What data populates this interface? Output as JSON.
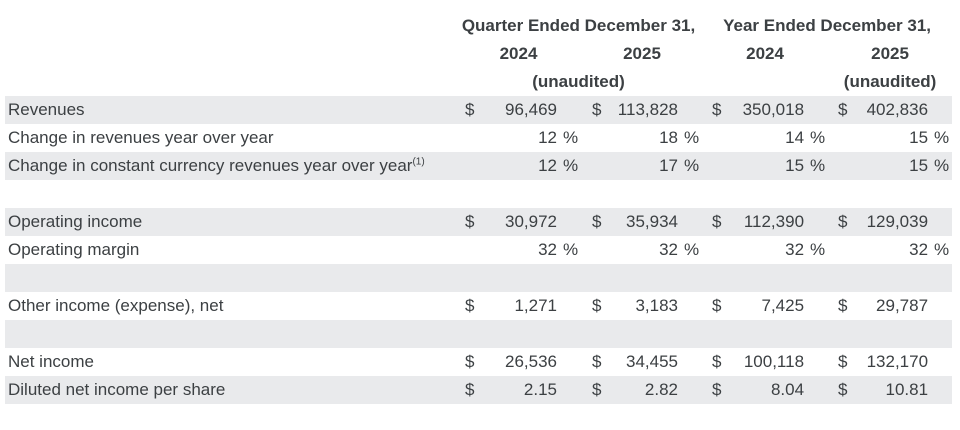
{
  "header": {
    "quarter_group": {
      "title": "Quarter Ended December 31,",
      "year_1": "2024",
      "year_2": "2025",
      "unaudited": "(unaudited)"
    },
    "year_group": {
      "title": "Year Ended December 31,",
      "year_1": "2024",
      "year_2": "2025",
      "unaudited": "(unaudited)"
    }
  },
  "symbols": {
    "dollar": "$",
    "percent": "%"
  },
  "colors": {
    "stripe": "#e9eaec",
    "text": "#3c4043",
    "background": "#ffffff"
  },
  "rows": [
    {
      "label": "Revenues",
      "unit": "dollar",
      "shaded": true,
      "values": [
        "96,469",
        "113,828",
        "350,018",
        "402,836"
      ]
    },
    {
      "label": "Change in revenues year over year",
      "unit": "percent",
      "shaded": false,
      "values": [
        "12",
        "18",
        "14",
        "15"
      ]
    },
    {
      "label": "Change in constant currency revenues year over year",
      "label_superscript": "(1)",
      "unit": "percent",
      "shaded": true,
      "values": [
        "12",
        "17",
        "15",
        "15"
      ]
    },
    {
      "spacer": true,
      "shaded": false
    },
    {
      "label": "Operating income",
      "unit": "dollar",
      "shaded": true,
      "values": [
        "30,972",
        "35,934",
        "112,390",
        "129,039"
      ]
    },
    {
      "label": "Operating margin",
      "unit": "percent",
      "shaded": false,
      "values": [
        "32",
        "32",
        "32",
        "32"
      ]
    },
    {
      "spacer": true,
      "shaded": true
    },
    {
      "label": "Other income (expense), net",
      "unit": "dollar",
      "shaded": false,
      "values": [
        "1,271",
        "3,183",
        "7,425",
        "29,787"
      ]
    },
    {
      "spacer": true,
      "shaded": true
    },
    {
      "label": "Net income",
      "unit": "dollar",
      "shaded": false,
      "values": [
        "26,536",
        "34,455",
        "100,118",
        "132,170"
      ]
    },
    {
      "label": "Diluted net income per share",
      "unit": "dollar",
      "shaded": true,
      "values": [
        "2.15",
        "2.82",
        "8.04",
        "10.81"
      ]
    }
  ]
}
